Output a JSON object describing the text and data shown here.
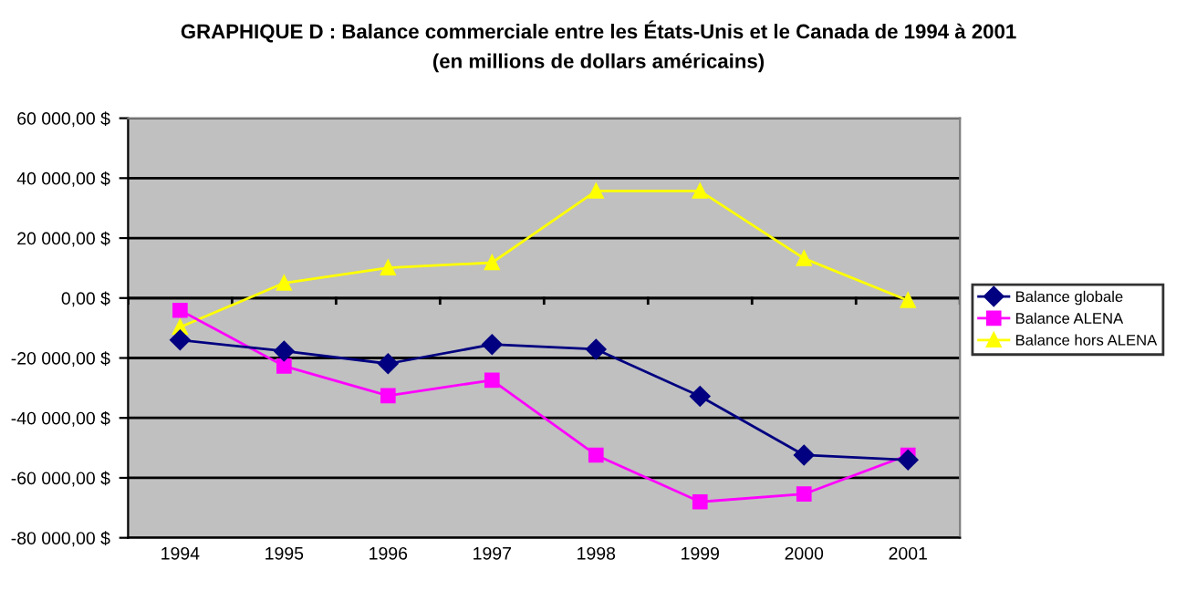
{
  "chart_data": {
    "type": "line",
    "title": "GRAPHIQUE D : Balance commerciale entre les États-Unis et le Canada de 1994 à 2001",
    "subtitle": "(en millions de dollars américains)",
    "categories": [
      "1994",
      "1995",
      "1996",
      "1997",
      "1998",
      "1999",
      "2000",
      "2001"
    ],
    "series": [
      {
        "name": "Balance globale",
        "color": "#000080",
        "marker": "diamond",
        "values": [
          -14000,
          -17700,
          -21900,
          -15500,
          -17100,
          -32800,
          -52400,
          -54000
        ]
      },
      {
        "name": "Balance ALENA",
        "color": "#ff00ff",
        "marker": "square",
        "values": [
          -4100,
          -22700,
          -32600,
          -27400,
          -52400,
          -68000,
          -65400,
          -52400
        ]
      },
      {
        "name": "Balance hors ALENA",
        "color": "#ffff00",
        "marker": "triangle",
        "values": [
          -9700,
          5000,
          10100,
          11800,
          35700,
          35700,
          13200,
          -800
        ]
      }
    ],
    "ylim": [
      -80000,
      60000
    ],
    "yticks": [
      {
        "value": -80000,
        "label": "-80 000,00 $"
      },
      {
        "value": -60000,
        "label": "-60 000,00 $"
      },
      {
        "value": -40000,
        "label": "-40 000,00 $"
      },
      {
        "value": -20000,
        "label": "-20 000,00 $"
      },
      {
        "value": 0,
        "label": "0,00 $"
      },
      {
        "value": 20000,
        "label": "20 000,00 $"
      },
      {
        "value": 40000,
        "label": "40 000,00 $"
      },
      {
        "value": 60000,
        "label": "60 000,00 $"
      }
    ],
    "grid": "y",
    "legend": "right",
    "line_style": "solid"
  }
}
